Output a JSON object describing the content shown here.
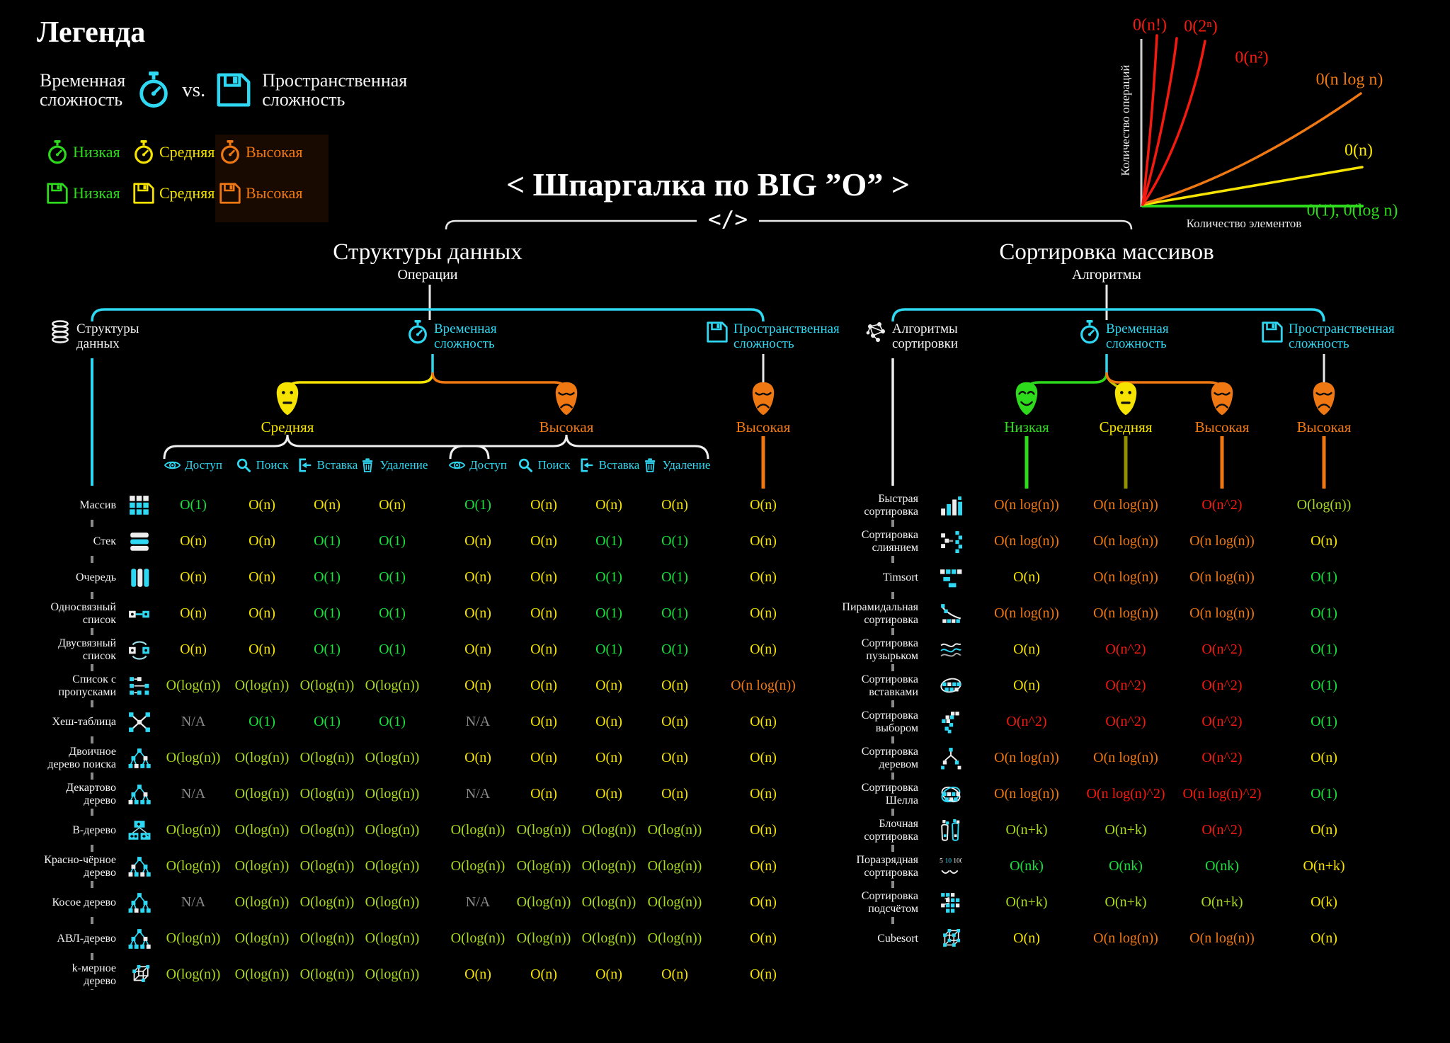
{
  "legend": {
    "title": "Легенда",
    "time_label": "Временная\nсложность",
    "vs_label": "vs.",
    "space_label": "Пространственная\nсложность",
    "levels": [
      {
        "label": "Низкая",
        "color": "#2edb1c"
      },
      {
        "label": "Средняя",
        "color": "#f6e400"
      },
      {
        "label": "Высокая",
        "color": "#f07812"
      }
    ]
  },
  "chart_data": {
    "type": "line",
    "title": "",
    "xlabel": "Количество элементов",
    "ylabel": "Количество операций",
    "grid": false,
    "legend_position": "inline-labels",
    "series": [
      {
        "name": "0(n!)",
        "color": "#f51a10",
        "shape": "factorial growth, steepest"
      },
      {
        "name": "0(2ⁿ)",
        "color": "#f51a10",
        "shape": "exponential"
      },
      {
        "name": "0(n²)",
        "color": "#f51a10",
        "shape": "quadratic"
      },
      {
        "name": "0(n log n)",
        "color": "#f07812",
        "shape": "linearithmic"
      },
      {
        "name": "0(n)",
        "color": "#f6e400",
        "shape": "linear"
      },
      {
        "name": "0(1), 0(log n)",
        "color": "#2edb1c",
        "shape": "flat along x-axis"
      }
    ]
  },
  "title": "< Шпаргалка по BIG ”O” >",
  "divider_code": "</>",
  "left": {
    "section_title": "Структуры данных",
    "section_subtitle": "Операции",
    "nodes": [
      {
        "label": "Структуры\nданных",
        "icon": "dbstack"
      },
      {
        "label": "Временная\nсложность",
        "icon": "stopwatch"
      },
      {
        "label": "Пространственная\nсложность",
        "icon": "disk"
      }
    ],
    "masks": [
      {
        "label": "Средняя",
        "mood": "neutral",
        "color": "#f6e400"
      },
      {
        "label": "Высокая",
        "mood": "sad",
        "color": "#f07812"
      },
      {
        "label": "Высокая",
        "mood": "sad",
        "color": "#f07812"
      }
    ],
    "operations": [
      "Доступ",
      "Поиск",
      "Вставка",
      "Удаление"
    ],
    "rows": [
      {
        "name": "Массив",
        "icon": "array",
        "cells": [
          [
            "O(1)",
            "green"
          ],
          [
            "O(n)",
            "yellow"
          ],
          [
            "O(n)",
            "yellow"
          ],
          [
            "O(n)",
            "yellow"
          ],
          [
            "O(1)",
            "green"
          ],
          [
            "O(n)",
            "yellow"
          ],
          [
            "O(n)",
            "yellow"
          ],
          [
            "O(n)",
            "yellow"
          ],
          [
            "O(n)",
            "yellow"
          ]
        ]
      },
      {
        "name": "Стек",
        "icon": "stack",
        "cells": [
          [
            "O(n)",
            "yellow"
          ],
          [
            "O(n)",
            "yellow"
          ],
          [
            "O(1)",
            "green"
          ],
          [
            "O(1)",
            "green"
          ],
          [
            "O(n)",
            "yellow"
          ],
          [
            "O(n)",
            "yellow"
          ],
          [
            "O(1)",
            "green"
          ],
          [
            "O(1)",
            "green"
          ],
          [
            "O(n)",
            "yellow"
          ]
        ]
      },
      {
        "name": "Очередь",
        "icon": "queue",
        "cells": [
          [
            "O(n)",
            "yellow"
          ],
          [
            "O(n)",
            "yellow"
          ],
          [
            "O(1)",
            "green"
          ],
          [
            "O(1)",
            "green"
          ],
          [
            "O(n)",
            "yellow"
          ],
          [
            "O(n)",
            "yellow"
          ],
          [
            "O(1)",
            "green"
          ],
          [
            "O(1)",
            "green"
          ],
          [
            "O(n)",
            "yellow"
          ]
        ]
      },
      {
        "name": "Односвязный\nсписок",
        "icon": "sll",
        "cells": [
          [
            "O(n)",
            "yellow"
          ],
          [
            "O(n)",
            "yellow"
          ],
          [
            "O(1)",
            "green"
          ],
          [
            "O(1)",
            "green"
          ],
          [
            "O(n)",
            "yellow"
          ],
          [
            "O(n)",
            "yellow"
          ],
          [
            "O(1)",
            "green"
          ],
          [
            "O(1)",
            "green"
          ],
          [
            "O(n)",
            "yellow"
          ]
        ]
      },
      {
        "name": "Двусвязный\nсписок",
        "icon": "dll",
        "cells": [
          [
            "O(n)",
            "yellow"
          ],
          [
            "O(n)",
            "yellow"
          ],
          [
            "O(1)",
            "green"
          ],
          [
            "O(1)",
            "green"
          ],
          [
            "O(n)",
            "yellow"
          ],
          [
            "O(n)",
            "yellow"
          ],
          [
            "O(1)",
            "green"
          ],
          [
            "O(1)",
            "green"
          ],
          [
            "O(n)",
            "yellow"
          ]
        ]
      },
      {
        "name": "Список с\nпропусками",
        "icon": "skip",
        "cells": [
          [
            "O(log(n))",
            "lime"
          ],
          [
            "O(log(n))",
            "lime"
          ],
          [
            "O(log(n))",
            "lime"
          ],
          [
            "O(log(n))",
            "lime"
          ],
          [
            "O(n)",
            "yellow"
          ],
          [
            "O(n)",
            "yellow"
          ],
          [
            "O(n)",
            "yellow"
          ],
          [
            "O(n)",
            "yellow"
          ],
          [
            "O(n log(n))",
            "orange"
          ]
        ]
      },
      {
        "name": "Хеш-таблица",
        "icon": "hash",
        "cells": [
          [
            "N/A",
            "gray"
          ],
          [
            "O(1)",
            "green"
          ],
          [
            "O(1)",
            "green"
          ],
          [
            "O(1)",
            "green"
          ],
          [
            "N/A",
            "gray"
          ],
          [
            "O(n)",
            "yellow"
          ],
          [
            "O(n)",
            "yellow"
          ],
          [
            "O(n)",
            "yellow"
          ],
          [
            "O(n)",
            "yellow"
          ]
        ]
      },
      {
        "name": "Двоичное\nдерево поиска",
        "icon": "bst",
        "cells": [
          [
            "O(log(n))",
            "lime"
          ],
          [
            "O(log(n))",
            "lime"
          ],
          [
            "O(log(n))",
            "lime"
          ],
          [
            "O(log(n))",
            "lime"
          ],
          [
            "O(n)",
            "yellow"
          ],
          [
            "O(n)",
            "yellow"
          ],
          [
            "O(n)",
            "yellow"
          ],
          [
            "O(n)",
            "yellow"
          ],
          [
            "O(n)",
            "yellow"
          ]
        ]
      },
      {
        "name": "Декартово\nдерево",
        "icon": "cartesian",
        "cells": [
          [
            "N/A",
            "gray"
          ],
          [
            "O(log(n))",
            "lime"
          ],
          [
            "O(log(n))",
            "lime"
          ],
          [
            "O(log(n))",
            "lime"
          ],
          [
            "N/A",
            "gray"
          ],
          [
            "O(n)",
            "yellow"
          ],
          [
            "O(n)",
            "yellow"
          ],
          [
            "O(n)",
            "yellow"
          ],
          [
            "O(n)",
            "yellow"
          ]
        ]
      },
      {
        "name": "В-дерево",
        "icon": "btree",
        "cells": [
          [
            "O(log(n))",
            "lime"
          ],
          [
            "O(log(n))",
            "lime"
          ],
          [
            "O(log(n))",
            "lime"
          ],
          [
            "O(log(n))",
            "lime"
          ],
          [
            "O(log(n))",
            "lime"
          ],
          [
            "O(log(n))",
            "lime"
          ],
          [
            "O(log(n))",
            "lime"
          ],
          [
            "O(log(n))",
            "lime"
          ],
          [
            "O(n)",
            "yellow"
          ]
        ]
      },
      {
        "name": "Красно-чёрное\nдерево",
        "icon": "rbtree",
        "cells": [
          [
            "O(log(n))",
            "lime"
          ],
          [
            "O(log(n))",
            "lime"
          ],
          [
            "O(log(n))",
            "lime"
          ],
          [
            "O(log(n))",
            "lime"
          ],
          [
            "O(log(n))",
            "lime"
          ],
          [
            "O(log(n))",
            "lime"
          ],
          [
            "O(log(n))",
            "lime"
          ],
          [
            "O(log(n))",
            "lime"
          ],
          [
            "O(n)",
            "yellow"
          ]
        ]
      },
      {
        "name": "Косое дерево",
        "icon": "splay",
        "cells": [
          [
            "N/A",
            "gray"
          ],
          [
            "O(log(n))",
            "lime"
          ],
          [
            "O(log(n))",
            "lime"
          ],
          [
            "O(log(n))",
            "lime"
          ],
          [
            "N/A",
            "gray"
          ],
          [
            "O(log(n))",
            "lime"
          ],
          [
            "O(log(n))",
            "lime"
          ],
          [
            "O(log(n))",
            "lime"
          ],
          [
            "O(n)",
            "yellow"
          ]
        ]
      },
      {
        "name": "АВЛ-дерево",
        "icon": "avl",
        "cells": [
          [
            "O(log(n))",
            "lime"
          ],
          [
            "O(log(n))",
            "lime"
          ],
          [
            "O(log(n))",
            "lime"
          ],
          [
            "O(log(n))",
            "lime"
          ],
          [
            "O(log(n))",
            "lime"
          ],
          [
            "O(log(n))",
            "lime"
          ],
          [
            "O(log(n))",
            "lime"
          ],
          [
            "O(log(n))",
            "lime"
          ],
          [
            "O(n)",
            "yellow"
          ]
        ]
      },
      {
        "name": "k-мерное\nдерево",
        "icon": "kd",
        "cells": [
          [
            "O(log(n))",
            "lime"
          ],
          [
            "O(log(n))",
            "lime"
          ],
          [
            "O(log(n))",
            "lime"
          ],
          [
            "O(log(n))",
            "lime"
          ],
          [
            "O(n)",
            "yellow"
          ],
          [
            "O(n)",
            "yellow"
          ],
          [
            "O(n)",
            "yellow"
          ],
          [
            "O(n)",
            "yellow"
          ],
          [
            "O(n)",
            "yellow"
          ]
        ]
      }
    ]
  },
  "right": {
    "section_title": "Сортировка массивов",
    "section_subtitle": "Алгоритмы",
    "nodes": [
      {
        "label": "Алгоритмы\nсортировки",
        "icon": "network"
      },
      {
        "label": "Временная\nсложность",
        "icon": "stopwatch"
      },
      {
        "label": "Пространственная\nсложность",
        "icon": "disk"
      }
    ],
    "masks": [
      {
        "label": "Низкая",
        "mood": "happy",
        "color": "#2edb1c"
      },
      {
        "label": "Средняя",
        "mood": "neutral",
        "color": "#f6e400"
      },
      {
        "label": "Высокая",
        "mood": "sad",
        "color": "#f07812"
      },
      {
        "label": "Высокая",
        "mood": "sad",
        "color": "#f07812"
      }
    ],
    "rows": [
      {
        "name": "Быстрая\nсортировка",
        "icon": "quick",
        "cells": [
          [
            "O(n log(n))",
            "orange"
          ],
          [
            "O(n log(n))",
            "orange"
          ],
          [
            "O(n^2)",
            "red"
          ],
          [
            "O(log(n))",
            "lime"
          ]
        ]
      },
      {
        "name": "Сортировка\nслиянием",
        "icon": "merge",
        "cells": [
          [
            "O(n log(n))",
            "orange"
          ],
          [
            "O(n log(n))",
            "orange"
          ],
          [
            "O(n log(n))",
            "orange"
          ],
          [
            "O(n)",
            "yellow"
          ]
        ]
      },
      {
        "name": "Timsort",
        "icon": "timsort",
        "cells": [
          [
            "O(n)",
            "yellow"
          ],
          [
            "O(n log(n))",
            "orange"
          ],
          [
            "O(n log(n))",
            "orange"
          ],
          [
            "O(1)",
            "green"
          ]
        ]
      },
      {
        "name": "Пирамидальная\nсортировка",
        "icon": "heap",
        "cells": [
          [
            "O(n log(n))",
            "orange"
          ],
          [
            "O(n log(n))",
            "orange"
          ],
          [
            "O(n log(n))",
            "orange"
          ],
          [
            "O(1)",
            "green"
          ]
        ]
      },
      {
        "name": "Сортировка\nпузырьком",
        "icon": "bubble",
        "cells": [
          [
            "O(n)",
            "yellow"
          ],
          [
            "O(n^2)",
            "red"
          ],
          [
            "O(n^2)",
            "red"
          ],
          [
            "O(1)",
            "green"
          ]
        ]
      },
      {
        "name": "Сортировка\nвставками",
        "icon": "insertion",
        "cells": [
          [
            "O(n)",
            "yellow"
          ],
          [
            "O(n^2)",
            "red"
          ],
          [
            "O(n^2)",
            "red"
          ],
          [
            "O(1)",
            "green"
          ]
        ]
      },
      {
        "name": "Сортировка\nвыбором",
        "icon": "selection",
        "cells": [
          [
            "O(n^2)",
            "red"
          ],
          [
            "O(n^2)",
            "red"
          ],
          [
            "O(n^2)",
            "red"
          ],
          [
            "O(1)",
            "green"
          ]
        ]
      },
      {
        "name": "Сортировка\nдеревом",
        "icon": "treesort",
        "cells": [
          [
            "O(n log(n))",
            "orange"
          ],
          [
            "O(n log(n))",
            "orange"
          ],
          [
            "O(n^2)",
            "red"
          ],
          [
            "O(n)",
            "yellow"
          ]
        ]
      },
      {
        "name": "Сортировка\nШелла",
        "icon": "shell",
        "cells": [
          [
            "O(n log(n))",
            "orange"
          ],
          [
            "O(n log(n)^2)",
            "red"
          ],
          [
            "O(n log(n)^2)",
            "red"
          ],
          [
            "O(1)",
            "green"
          ]
        ]
      },
      {
        "name": "Блочная\nсортировка",
        "icon": "bucket",
        "cells": [
          [
            "O(n+k)",
            "lime"
          ],
          [
            "O(n+k)",
            "lime"
          ],
          [
            "O(n^2)",
            "red"
          ],
          [
            "O(n)",
            "yellow"
          ]
        ]
      },
      {
        "name": "Поразрядная\nсортировка",
        "icon": "radix",
        "cells": [
          [
            "O(nk)",
            "green"
          ],
          [
            "O(nk)",
            "green"
          ],
          [
            "O(nk)",
            "green"
          ],
          [
            "O(n+k)",
            "yellow"
          ]
        ]
      },
      {
        "name": "Сортировка\nподсчётом",
        "icon": "counting",
        "cells": [
          [
            "O(n+k)",
            "lime"
          ],
          [
            "O(n+k)",
            "lime"
          ],
          [
            "O(n+k)",
            "lime"
          ],
          [
            "O(k)",
            "yellow"
          ]
        ]
      },
      {
        "name": "Cubesort",
        "icon": "cubesort",
        "cells": [
          [
            "O(n)",
            "yellow"
          ],
          [
            "O(n log(n))",
            "orange"
          ],
          [
            "O(n log(n))",
            "orange"
          ],
          [
            "O(n)",
            "yellow"
          ]
        ]
      }
    ]
  }
}
